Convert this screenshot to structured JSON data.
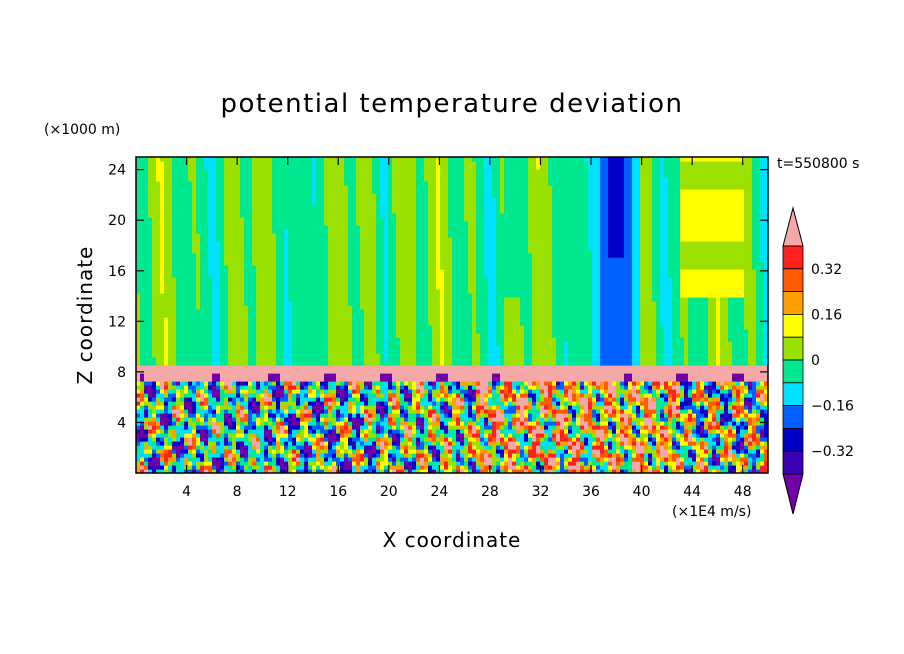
{
  "chart_data": {
    "type": "heatmap",
    "title": "potential temperature deviation",
    "xlabel": "X coordinate",
    "ylabel": "Z coordinate",
    "x_unit": "(×1E4 m/s)",
    "y_unit": "(×1000 m)",
    "time_label": "t=550800 s",
    "xlim": [
      0,
      50
    ],
    "ylim": [
      0,
      25
    ],
    "x_ticks": [
      4,
      8,
      12,
      16,
      20,
      24,
      28,
      32,
      36,
      40,
      44,
      48
    ],
    "y_ticks": [
      4,
      8,
      12,
      16,
      20,
      24
    ],
    "x_tick_labels": [
      "4",
      "8",
      "12",
      "16",
      "20",
      "24",
      "28",
      "32",
      "36",
      "40",
      "44",
      "48"
    ],
    "y_tick_labels": [
      "4",
      "8",
      "12",
      "16",
      "20",
      "24"
    ],
    "colorbar": {
      "levels": [
        -0.48,
        -0.4,
        -0.32,
        -0.24,
        -0.16,
        -0.08,
        0,
        0.08,
        0.16,
        0.24,
        0.32,
        0.4
      ],
      "labels": [
        "-0.32",
        "-0.16",
        "0",
        "0.16",
        "0.32"
      ],
      "label_values": [
        -0.32,
        -0.16,
        0,
        0.16,
        0.32
      ],
      "colors": [
        "#7000a8",
        "#3a00b8",
        "#0000c8",
        "#0060ff",
        "#00e0ff",
        "#00e890",
        "#9ae000",
        "#ffff00",
        "#ffa000",
        "#ff5a00",
        "#ff2020",
        "#f5a8a8"
      ],
      "extend": "both"
    },
    "regions": {
      "upper_band": {
        "z_range": [
          8.6,
          25
        ],
        "dominant_values": [
          -0.08,
          0,
          0.08
        ]
      },
      "inversion_layer": {
        "z_range": [
          7.2,
          8.6
        ],
        "dominant_value": 0.44
      },
      "turbulent_band": {
        "z_range": [
          0,
          7.2
        ],
        "value_range": [
          -0.48,
          0.44
        ]
      },
      "cold_column": {
        "x_range": [
          36,
          40
        ],
        "z_range": [
          9,
          25
        ],
        "value_range": [
          -0.4,
          -0.16
        ]
      },
      "warm_column": {
        "x_range": [
          43,
          48
        ],
        "z_range": [
          14,
          25
        ],
        "value_range": [
          0.08,
          0.16
        ]
      }
    }
  }
}
